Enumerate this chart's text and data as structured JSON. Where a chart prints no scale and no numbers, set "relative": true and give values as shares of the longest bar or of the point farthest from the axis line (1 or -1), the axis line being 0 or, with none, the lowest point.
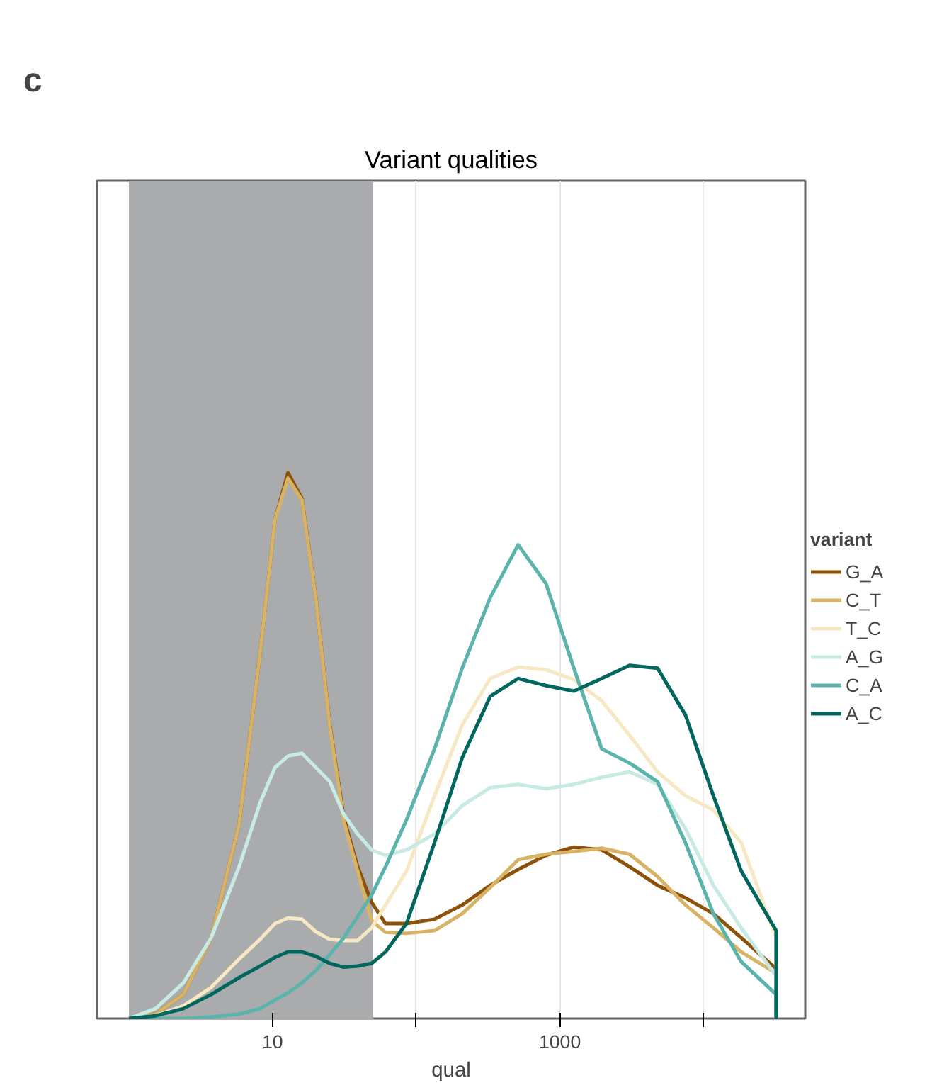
{
  "chart_data": {
    "type": "line",
    "title": "Variant qualities",
    "xlabel": "qual",
    "legend_title": "variant",
    "annotations": [
      "c"
    ],
    "relative": true,
    "log": "x",
    "grid": "x",
    "legend": "right",
    "line_style": "solid",
    "marker": "none",
    "x": [
      1,
      1.53,
      2.39,
      3.74,
      5.85,
      8.18,
      10.4,
      12.8,
      16,
      20,
      25,
      31.3,
      39.1,
      48.9,
      61.1,
      85.5,
      134,
      209,
      327,
      512,
      800,
      1250,
      1955,
      3055,
      4780,
      7480,
      11700,
      18300,
      32000,
      32000
    ],
    "xlim": [
      0.6,
      51000
    ],
    "xticks": [
      {
        "value": 10,
        "label": "10"
      },
      {
        "value": 100,
        "label": null
      },
      {
        "value": 1000,
        "label": "1000"
      },
      {
        "value": 10000,
        "label": null
      }
    ],
    "bands": [
      {
        "axis": "x",
        "from": 1,
        "to": 50,
        "color": "#aaabac"
      }
    ],
    "series": [
      {
        "name": "G_A",
        "color": "#8c510a",
        "values": [
          0,
          0.008,
          0.044,
          0.148,
          0.356,
          0.668,
          0.914,
          1.0,
          0.953,
          0.771,
          0.538,
          0.369,
          0.278,
          0.213,
          0.174,
          0.174,
          0.182,
          0.208,
          0.244,
          0.273,
          0.299,
          0.314,
          0.309,
          0.278,
          0.244,
          0.221,
          0.192,
          0.148,
          0.091,
          0
        ]
      },
      {
        "name": "C_T",
        "color": "#d8b365",
        "values": [
          0,
          0.008,
          0.044,
          0.148,
          0.356,
          0.668,
          0.914,
          0.99,
          0.95,
          0.77,
          0.535,
          0.362,
          0.27,
          0.179,
          0.158,
          0.156,
          0.161,
          0.192,
          0.24,
          0.291,
          0.301,
          0.306,
          0.312,
          0.301,
          0.26,
          0.208,
          0.166,
          0.122,
          0.083,
          0
        ]
      },
      {
        "name": "T_C",
        "color": "#f6e8c3",
        "values": [
          0,
          0.005,
          0.023,
          0.057,
          0.109,
          0.145,
          0.174,
          0.184,
          0.182,
          0.159,
          0.145,
          0.143,
          0.143,
          0.166,
          0.208,
          0.27,
          0.408,
          0.538,
          0.623,
          0.644,
          0.639,
          0.621,
          0.582,
          0.519,
          0.452,
          0.408,
          0.382,
          0.322,
          0.148,
          0
        ]
      },
      {
        "name": "A_G",
        "color": "#c7eae5",
        "values": [
          0,
          0.018,
          0.065,
          0.148,
          0.278,
          0.395,
          0.46,
          0.481,
          0.486,
          0.46,
          0.434,
          0.374,
          0.338,
          0.309,
          0.299,
          0.309,
          0.338,
          0.39,
          0.423,
          0.429,
          0.421,
          0.429,
          0.442,
          0.452,
          0.429,
          0.348,
          0.244,
          0.166,
          0.078,
          0
        ]
      },
      {
        "name": "C_A",
        "color": "#5ab4ac",
        "values": [
          0,
          0,
          0,
          0.003,
          0.008,
          0.018,
          0.034,
          0.047,
          0.065,
          0.088,
          0.117,
          0.148,
          0.187,
          0.226,
          0.278,
          0.364,
          0.494,
          0.642,
          0.771,
          0.868,
          0.797,
          0.642,
          0.494,
          0.468,
          0.434,
          0.322,
          0.192,
          0.104,
          0.044,
          0
        ]
      },
      {
        "name": "A_C",
        "color": "#01665e",
        "values": [
          0,
          0.005,
          0.018,
          0.044,
          0.075,
          0.096,
          0.112,
          0.122,
          0.122,
          0.114,
          0.101,
          0.094,
          0.096,
          0.101,
          0.122,
          0.174,
          0.322,
          0.478,
          0.59,
          0.623,
          0.61,
          0.6,
          0.623,
          0.647,
          0.642,
          0.556,
          0.408,
          0.27,
          0.161,
          0
        ]
      }
    ]
  }
}
